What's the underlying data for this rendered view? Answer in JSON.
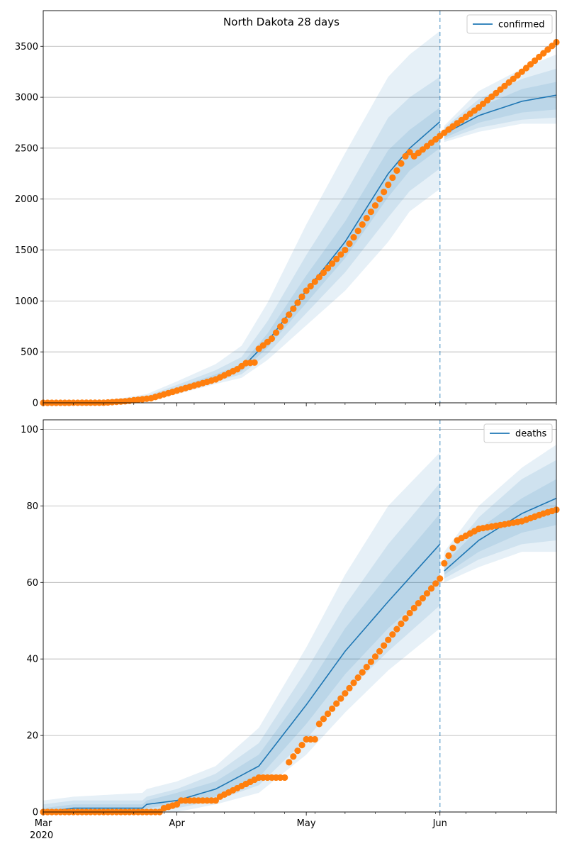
{
  "figure": {
    "title": "North Dakota 28 days",
    "xaxis_year": "2020",
    "x_tick_labels": [
      "Mar",
      "Apr",
      "May",
      "Jun"
    ]
  },
  "colors": {
    "model_line": "#1f77b4",
    "observed_points": "#ff7f0e",
    "band": "#1f77b4",
    "grid": "#b0b0b0",
    "forecast_start_line": "#1f77b4"
  },
  "chart_data": [
    {
      "type": "line",
      "title": "North Dakota 28 days",
      "xlabel": "",
      "ylabel": "",
      "x_range": [
        "2020-03-01",
        "2020-06-28"
      ],
      "forecast_start": "2020-06-01",
      "ylim": [
        0,
        3850
      ],
      "y_ticks": [
        0,
        500,
        1000,
        1500,
        2000,
        2500,
        3000,
        3500
      ],
      "grid": "horizontal",
      "legend": {
        "entries": [
          "confirmed"
        ],
        "position": "top-right"
      },
      "series": [
        {
          "name": "confirmed",
          "kind": "model-median-with-uncertainty-bands",
          "keypoints": [
            {
              "date": "2020-03-01",
              "median": 5,
              "b1": [
                3,
                7
              ],
              "b2": [
                2,
                9
              ],
              "b3": [
                1,
                12
              ]
            },
            {
              "date": "2020-03-15",
              "median": 8,
              "b1": [
                6,
                11
              ],
              "b2": [
                4,
                14
              ],
              "b3": [
                3,
                18
              ]
            },
            {
              "date": "2020-03-25",
              "median": 45,
              "b1": [
                38,
                55
              ],
              "b2": [
                30,
                68
              ],
              "b3": [
                22,
                85
              ]
            },
            {
              "date": "2020-04-01",
              "median": 130,
              "b1": [
                115,
                150
              ],
              "b2": [
                100,
                175
              ],
              "b3": [
                85,
                210
              ]
            },
            {
              "date": "2020-04-10",
              "median": 250,
              "b1": [
                230,
                280
              ],
              "b2": [
                210,
                320
              ],
              "b3": [
                185,
                380
              ]
            },
            {
              "date": "2020-04-16",
              "median": 340,
              "b1": [
                310,
                380
              ],
              "b2": [
                280,
                450
              ],
              "b3": [
                245,
                560
              ]
            },
            {
              "date": "2020-04-22",
              "median": 600,
              "b1": [
                540,
                680
              ],
              "b2": [
                480,
                800
              ],
              "b3": [
                420,
                980
              ]
            },
            {
              "date": "2020-05-01",
              "median": 1100,
              "b1": [
                980,
                1250
              ],
              "b2": [
                880,
                1450
              ],
              "b3": [
                760,
                1750
              ]
            },
            {
              "date": "2020-05-10",
              "median": 1580,
              "b1": [
                1420,
                1780
              ],
              "b2": [
                1280,
                2050
              ],
              "b3": [
                1100,
                2450
              ]
            },
            {
              "date": "2020-05-20",
              "median": 2250,
              "b1": [
                2020,
                2480
              ],
              "b2": [
                1820,
                2800
              ],
              "b3": [
                1580,
                3200
              ]
            },
            {
              "date": "2020-05-25",
              "median": 2500,
              "b1": [
                2280,
                2680
              ],
              "b2": [
                2080,
                3000
              ],
              "b3": [
                1880,
                3420
              ]
            },
            {
              "date": "2020-06-01",
              "median": 2760,
              "b1": [
                2500,
                2900
              ],
              "b2": [
                2300,
                3200
              ],
              "b3": [
                2100,
                3650
              ]
            },
            {
              "date": "2020-06-02",
              "median": 2640,
              "b1": [
                2600,
                2680
              ],
              "b2": [
                2580,
                2700
              ],
              "b3": [
                2560,
                2720
              ]
            },
            {
              "date": "2020-06-10",
              "median": 2820,
              "b1": [
                2750,
                2900
              ],
              "b2": [
                2700,
                2980
              ],
              "b3": [
                2660,
                3060
              ]
            },
            {
              "date": "2020-06-20",
              "median": 2960,
              "b1": [
                2850,
                3080
              ],
              "b2": [
                2780,
                3180
              ],
              "b3": [
                2740,
                3280
              ]
            },
            {
              "date": "2020-06-28",
              "median": 3020,
              "b1": [
                2880,
                3150
              ],
              "b2": [
                2800,
                3280
              ],
              "b3": [
                2740,
                3420
              ]
            }
          ]
        },
        {
          "name": "observed",
          "kind": "points",
          "keypoints": [
            {
              "date": "2020-03-01",
              "value": 0
            },
            {
              "date": "2020-03-15",
              "value": 1
            },
            {
              "date": "2020-03-20",
              "value": 15
            },
            {
              "date": "2020-03-26",
              "value": 45
            },
            {
              "date": "2020-04-01",
              "value": 120
            },
            {
              "date": "2020-04-10",
              "value": 230
            },
            {
              "date": "2020-04-15",
              "value": 330
            },
            {
              "date": "2020-04-17",
              "value": 390
            },
            {
              "date": "2020-04-19",
              "value": 395
            },
            {
              "date": "2020-04-20",
              "value": 530
            },
            {
              "date": "2020-04-23",
              "value": 630
            },
            {
              "date": "2020-05-01",
              "value": 1100
            },
            {
              "date": "2020-05-10",
              "value": 1500
            },
            {
              "date": "2020-05-18",
              "value": 2000
            },
            {
              "date": "2020-05-24",
              "value": 2420
            },
            {
              "date": "2020-05-25",
              "value": 2460
            },
            {
              "date": "2020-05-26",
              "value": 2420
            },
            {
              "date": "2020-06-01",
              "value": 2620
            },
            {
              "date": "2020-06-10",
              "value": 2900
            },
            {
              "date": "2020-06-20",
              "value": 3250
            },
            {
              "date": "2020-06-28",
              "value": 3540
            }
          ]
        }
      ]
    },
    {
      "type": "line",
      "title": "",
      "xlabel": "",
      "ylabel": "",
      "x_range": [
        "2020-03-01",
        "2020-06-28"
      ],
      "forecast_start": "2020-06-01",
      "ylim": [
        0,
        102.5
      ],
      "y_ticks": [
        0,
        20,
        40,
        60,
        80,
        100
      ],
      "grid": "horizontal",
      "legend": {
        "entries": [
          "deaths"
        ],
        "position": "top-right"
      },
      "series": [
        {
          "name": "deaths",
          "kind": "model-median-with-uncertainty-bands",
          "keypoints": [
            {
              "date": "2020-03-01",
              "median": 0,
              "b1": [
                0,
                1
              ],
              "b2": [
                0,
                2
              ],
              "b3": [
                0,
                3
              ]
            },
            {
              "date": "2020-03-08",
              "median": 1,
              "b1": [
                0,
                2
              ],
              "b2": [
                0,
                3
              ],
              "b3": [
                0,
                4
              ]
            },
            {
              "date": "2020-03-24",
              "median": 1,
              "b1": [
                0,
                2
              ],
              "b2": [
                0,
                3
              ],
              "b3": [
                0,
                5
              ]
            },
            {
              "date": "2020-03-25",
              "median": 2,
              "b1": [
                1,
                3
              ],
              "b2": [
                0,
                4
              ],
              "b3": [
                0,
                6
              ]
            },
            {
              "date": "2020-04-01",
              "median": 3,
              "b1": [
                2,
                5
              ],
              "b2": [
                1,
                6
              ],
              "b3": [
                0,
                8
              ]
            },
            {
              "date": "2020-04-10",
              "median": 6,
              "b1": [
                4,
                8
              ],
              "b2": [
                3,
                10
              ],
              "b3": [
                2,
                12
              ]
            },
            {
              "date": "2020-04-20",
              "median": 12,
              "b1": [
                9,
                15
              ],
              "b2": [
                7,
                18
              ],
              "b3": [
                5,
                22
              ]
            },
            {
              "date": "2020-05-01",
              "median": 28,
              "b1": [
                23,
                32
              ],
              "b2": [
                19,
                37
              ],
              "b3": [
                15,
                43
              ]
            },
            {
              "date": "2020-05-10",
              "median": 42,
              "b1": [
                36,
                48
              ],
              "b2": [
                31,
                54
              ],
              "b3": [
                26,
                62
              ]
            },
            {
              "date": "2020-05-20",
              "median": 55,
              "b1": [
                48,
                62
              ],
              "b2": [
                42,
                70
              ],
              "b3": [
                37,
                80
              ]
            },
            {
              "date": "2020-06-01",
              "median": 70,
              "b1": [
                60,
                78
              ],
              "b2": [
                54,
                86
              ],
              "b3": [
                48,
                94
              ]
            },
            {
              "date": "2020-06-02",
              "median": 63,
              "b1": [
                62,
                65
              ],
              "b2": [
                61,
                66
              ],
              "b3": [
                60,
                68
              ]
            },
            {
              "date": "2020-06-10",
              "median": 71,
              "b1": [
                68,
                74
              ],
              "b2": [
                66,
                77
              ],
              "b3": [
                64,
                80
              ]
            },
            {
              "date": "2020-06-20",
              "median": 78,
              "b1": [
                73,
                82
              ],
              "b2": [
                70,
                87
              ],
              "b3": [
                68,
                90
              ]
            },
            {
              "date": "2020-06-28",
              "median": 82,
              "b1": [
                75,
                87
              ],
              "b2": [
                71,
                92
              ],
              "b3": [
                68,
                96
              ]
            }
          ]
        },
        {
          "name": "observed",
          "kind": "points",
          "keypoints": [
            {
              "date": "2020-03-01",
              "value": 0
            },
            {
              "date": "2020-03-28",
              "value": 0
            },
            {
              "date": "2020-03-29",
              "value": 1
            },
            {
              "date": "2020-04-01",
              "value": 2
            },
            {
              "date": "2020-04-02",
              "value": 3
            },
            {
              "date": "2020-04-10",
              "value": 3
            },
            {
              "date": "2020-04-11",
              "value": 4
            },
            {
              "date": "2020-04-20",
              "value": 9
            },
            {
              "date": "2020-04-26",
              "value": 9
            },
            {
              "date": "2020-04-27",
              "value": 13
            },
            {
              "date": "2020-05-01",
              "value": 19
            },
            {
              "date": "2020-05-03",
              "value": 19
            },
            {
              "date": "2020-05-04",
              "value": 23
            },
            {
              "date": "2020-05-10",
              "value": 31
            },
            {
              "date": "2020-05-18",
              "value": 42
            },
            {
              "date": "2020-05-20",
              "value": 45
            },
            {
              "date": "2020-05-25",
              "value": 52
            },
            {
              "date": "2020-06-01",
              "value": 61
            },
            {
              "date": "2020-06-02",
              "value": 65
            },
            {
              "date": "2020-06-05",
              "value": 71
            },
            {
              "date": "2020-06-10",
              "value": 74
            },
            {
              "date": "2020-06-20",
              "value": 76
            },
            {
              "date": "2020-06-25",
              "value": 78
            },
            {
              "date": "2020-06-28",
              "value": 79
            }
          ]
        }
      ]
    }
  ]
}
